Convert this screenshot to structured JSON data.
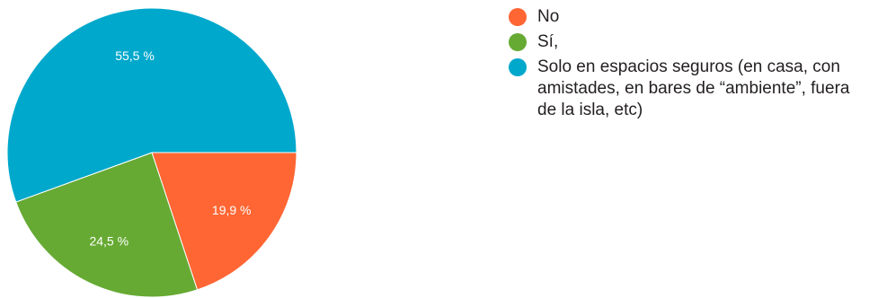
{
  "chart_data": {
    "type": "pie",
    "slices": [
      {
        "label": "No",
        "value": 19.9,
        "display": "19,9 %",
        "color": "#ff6633"
      },
      {
        "label": "Sí,",
        "value": 24.5,
        "display": "24,5 %",
        "color": "#66aa33"
      },
      {
        "label": "Solo en espacios seguros (en casa, con amistades, en bares de “ambiente”, fuera de la isla, etc)",
        "value": 55.5,
        "display": "55,5 %",
        "color": "#00a8cc"
      }
    ],
    "start_position": "3 o'clock",
    "direction": "clockwise",
    "legend_placement": "right",
    "title": ""
  }
}
